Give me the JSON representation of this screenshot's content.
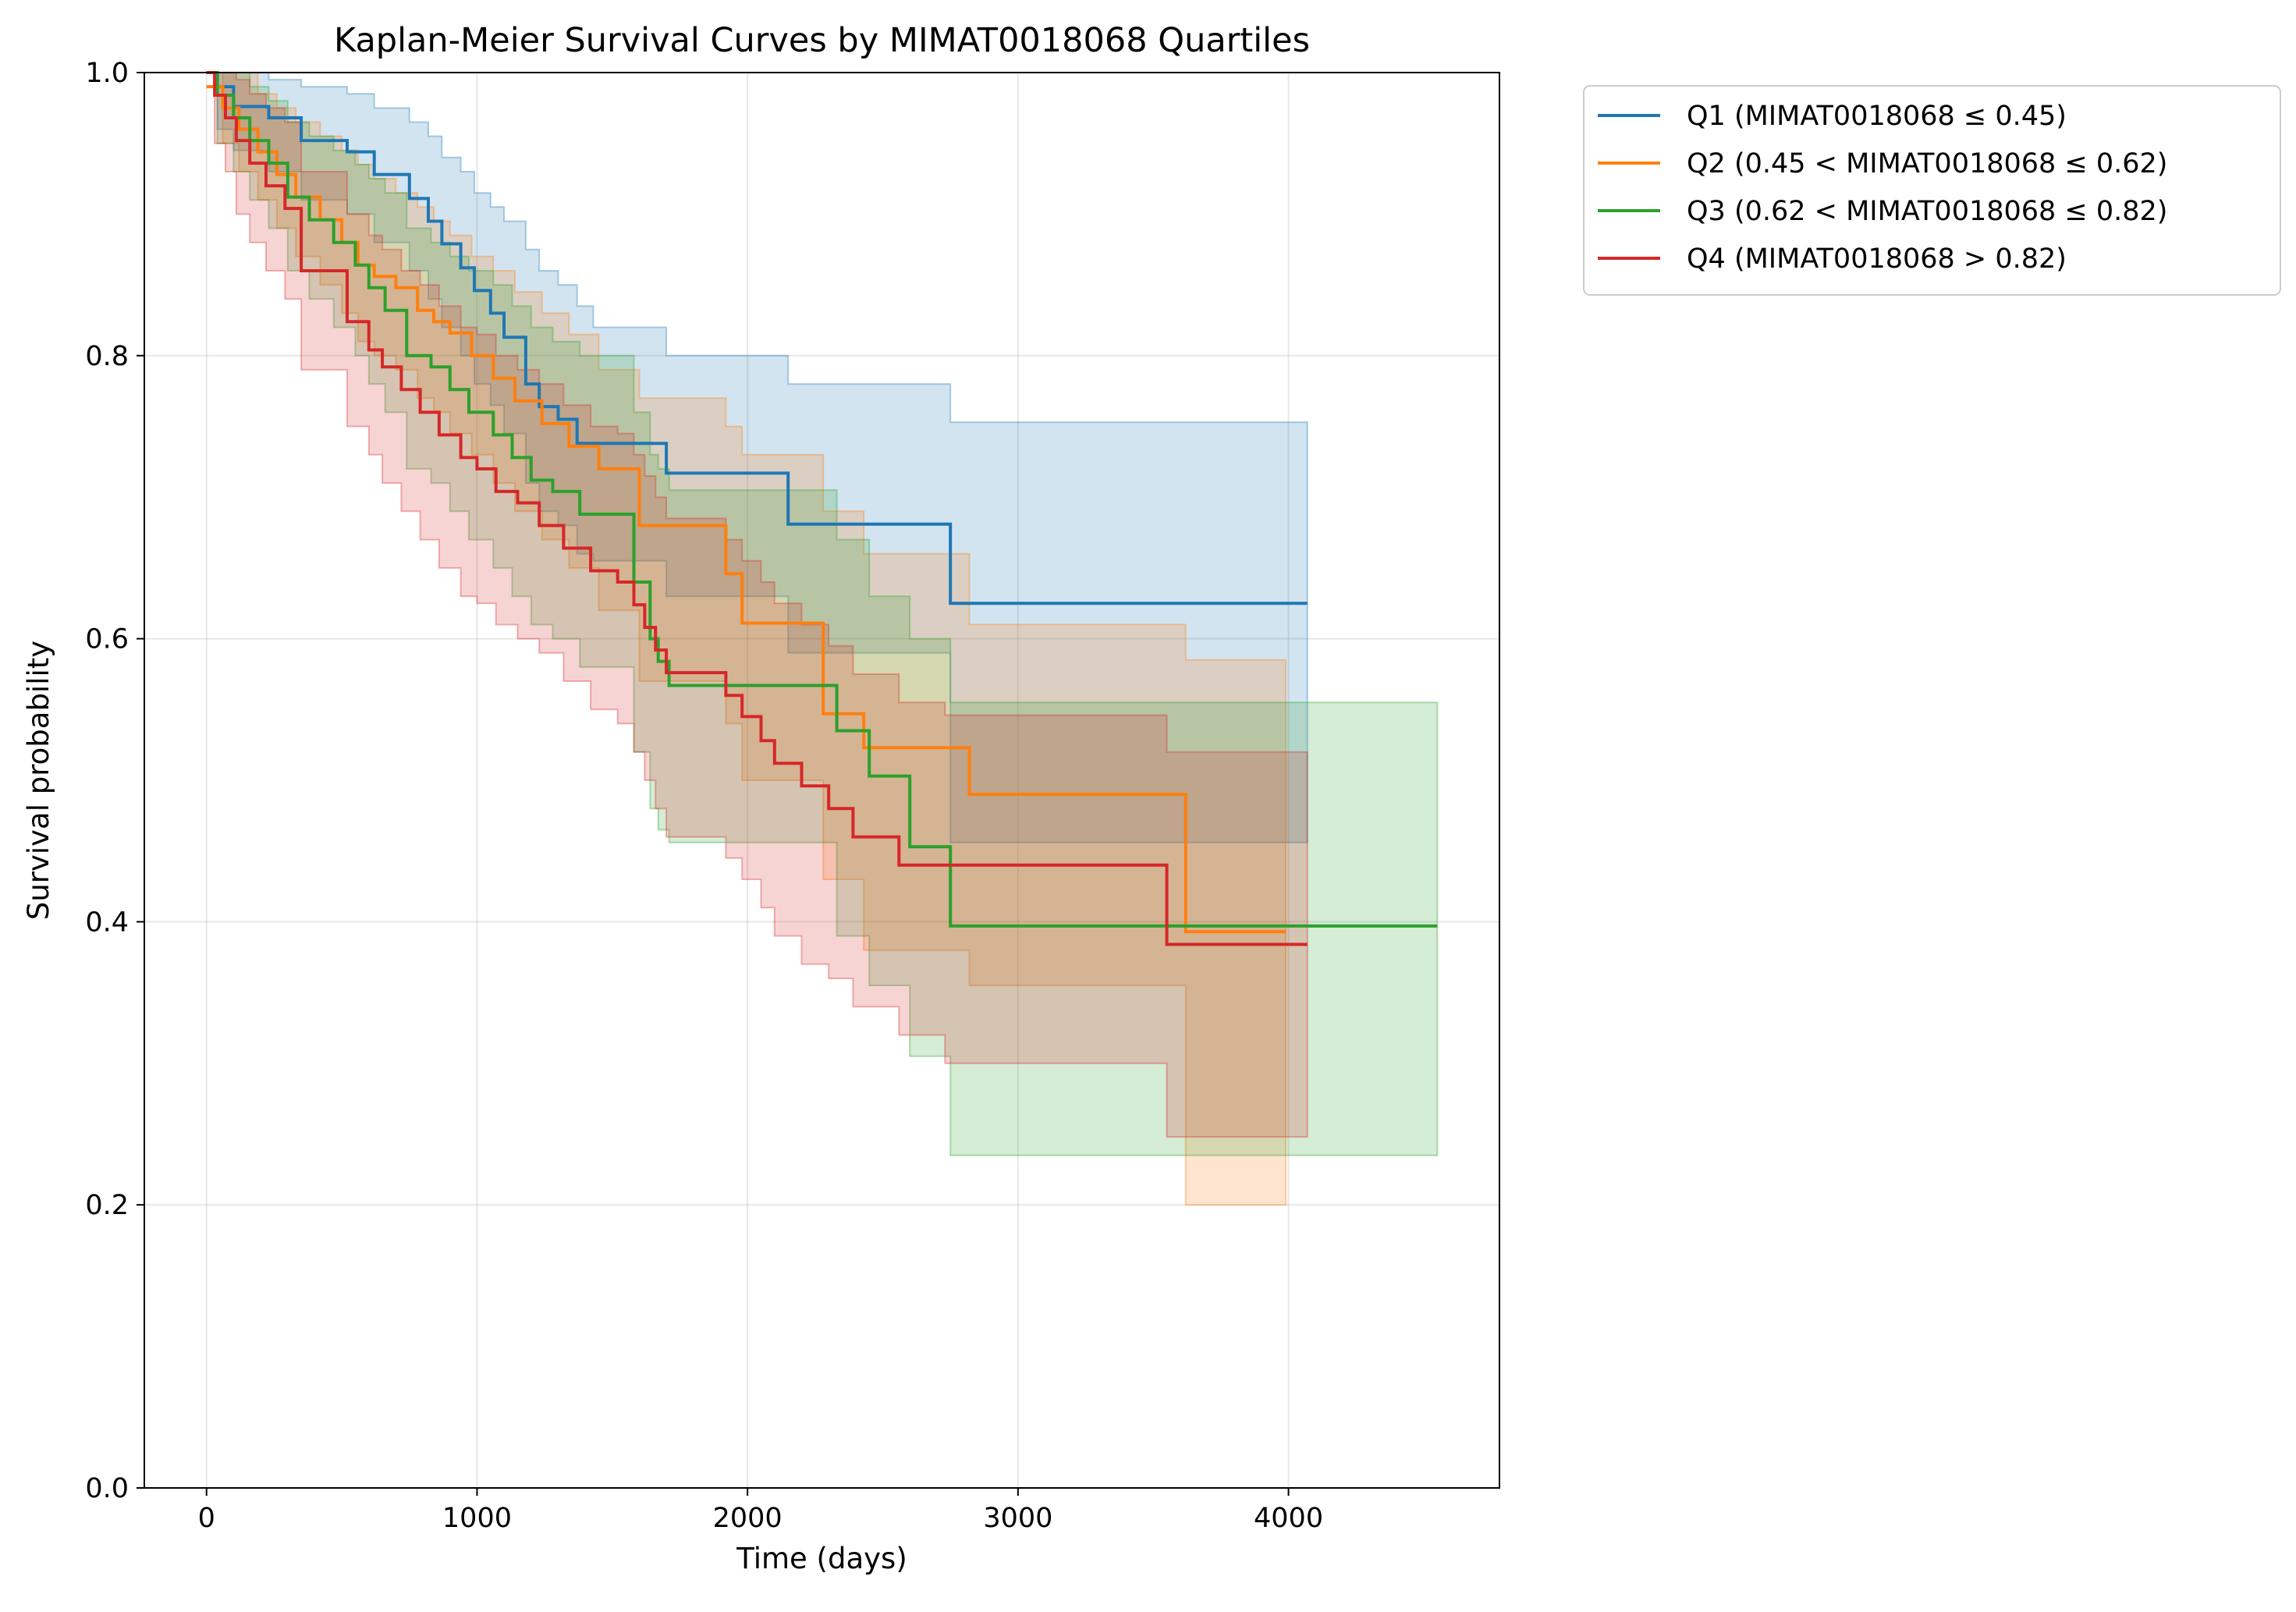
{
  "chart_data": {
    "type": "line",
    "title": "Kaplan-Meier Survival Curves by MIMAT0018068 Quartiles",
    "xlabel": "Time (days)",
    "ylabel": "Survival probability",
    "xlim": [
      -230,
      4780
    ],
    "ylim": [
      0,
      1.0
    ],
    "xticks": [
      0,
      1000,
      2000,
      3000,
      4000
    ],
    "yticks": [
      0.0,
      0.2,
      0.4,
      0.6,
      0.8,
      1.0
    ],
    "xtick_labels": [
      "0",
      "1000",
      "2000",
      "3000",
      "4000"
    ],
    "ytick_labels": [
      "0.0",
      "0.2",
      "0.4",
      "0.6",
      "0.8",
      "1.0"
    ],
    "grid": true,
    "legend_position": "outside-top-right",
    "series": [
      {
        "name": "Q1 (MIMAT0018068 ≤ 0.45)",
        "color": "#1f77b4",
        "x": [
          0,
          40,
          100,
          230,
          350,
          520,
          620,
          750,
          820,
          870,
          940,
          990,
          1050,
          1100,
          1180,
          1230,
          1300,
          1370,
          1430,
          1700,
          2150,
          2750,
          4070
        ],
        "y": [
          1.0,
          0.99,
          0.976,
          0.968,
          0.952,
          0.944,
          0.928,
          0.911,
          0.895,
          0.879,
          0.862,
          0.846,
          0.83,
          0.813,
          0.78,
          0.764,
          0.755,
          0.738,
          0.738,
          0.717,
          0.681,
          0.625,
          0.625
        ],
        "ci_x": [
          0,
          40,
          100,
          230,
          350,
          520,
          620,
          750,
          820,
          870,
          940,
          990,
          1050,
          1100,
          1180,
          1230,
          1300,
          1370,
          1430,
          1700,
          2150,
          2750,
          4070
        ],
        "ci_upper": [
          1.0,
          1.0,
          1.0,
          0.995,
          0.99,
          0.985,
          0.975,
          0.965,
          0.955,
          0.94,
          0.93,
          0.915,
          0.905,
          0.895,
          0.875,
          0.86,
          0.85,
          0.835,
          0.82,
          0.8,
          0.78,
          0.753,
          0.753
        ],
        "ci_lower": [
          1.0,
          0.96,
          0.945,
          0.93,
          0.91,
          0.9,
          0.88,
          0.86,
          0.84,
          0.82,
          0.8,
          0.78,
          0.765,
          0.745,
          0.71,
          0.69,
          0.68,
          0.66,
          0.655,
          0.63,
          0.59,
          0.456,
          0.456
        ]
      },
      {
        "name": "Q2 (0.45 < MIMAT0018068 ≤ 0.62)",
        "color": "#ff7f0e",
        "x": [
          0,
          60,
          120,
          190,
          260,
          330,
          420,
          500,
          560,
          620,
          700,
          780,
          840,
          900,
          980,
          1060,
          1140,
          1240,
          1340,
          1450,
          1600,
          1920,
          1980,
          2280,
          2430,
          2820,
          3620,
          3990
        ],
        "y": [
          0.99,
          0.975,
          0.96,
          0.944,
          0.928,
          0.912,
          0.896,
          0.88,
          0.864,
          0.856,
          0.848,
          0.832,
          0.824,
          0.816,
          0.8,
          0.784,
          0.768,
          0.752,
          0.736,
          0.72,
          0.68,
          0.646,
          0.611,
          0.547,
          0.523,
          0.49,
          0.393,
          0.393
        ],
        "ci_x": [
          0,
          60,
          120,
          190,
          260,
          330,
          420,
          500,
          560,
          620,
          700,
          780,
          840,
          900,
          980,
          1060,
          1140,
          1240,
          1340,
          1450,
          1600,
          1920,
          1980,
          2280,
          2430,
          2820,
          3620,
          3990
        ],
        "ci_upper": [
          1.0,
          1.0,
          1.0,
          0.985,
          0.975,
          0.965,
          0.955,
          0.945,
          0.935,
          0.925,
          0.915,
          0.905,
          0.895,
          0.885,
          0.87,
          0.86,
          0.845,
          0.83,
          0.815,
          0.79,
          0.77,
          0.75,
          0.73,
          0.69,
          0.66,
          0.61,
          0.585,
          0.585
        ],
        "ci_lower": [
          1.0,
          0.95,
          0.93,
          0.91,
          0.89,
          0.87,
          0.85,
          0.83,
          0.81,
          0.8,
          0.79,
          0.77,
          0.76,
          0.745,
          0.73,
          0.71,
          0.69,
          0.67,
          0.65,
          0.62,
          0.57,
          0.54,
          0.5,
          0.43,
          0.38,
          0.355,
          0.2,
          0.2
        ]
      },
      {
        "name": "Q3 (0.62 < MIMAT0018068 ≤ 0.82)",
        "color": "#2ca02c",
        "x": [
          0,
          40,
          100,
          160,
          230,
          300,
          380,
          470,
          550,
          600,
          660,
          740,
          830,
          900,
          970,
          1060,
          1130,
          1200,
          1280,
          1380,
          1580,
          1640,
          1670,
          1710,
          2330,
          2450,
          2600,
          2750,
          4550
        ],
        "y": [
          1.0,
          0.984,
          0.968,
          0.952,
          0.936,
          0.912,
          0.896,
          0.88,
          0.864,
          0.848,
          0.832,
          0.8,
          0.792,
          0.776,
          0.76,
          0.744,
          0.728,
          0.712,
          0.704,
          0.688,
          0.64,
          0.6,
          0.584,
          0.567,
          0.535,
          0.503,
          0.453,
          0.397,
          0.397
        ],
        "ci_x": [
          0,
          40,
          100,
          160,
          230,
          300,
          380,
          470,
          550,
          600,
          660,
          740,
          830,
          900,
          970,
          1060,
          1130,
          1200,
          1280,
          1380,
          1580,
          1640,
          1670,
          1710,
          2330,
          2450,
          2600,
          2750,
          4550
        ],
        "ci_upper": [
          1.0,
          1.0,
          1.0,
          0.99,
          0.98,
          0.965,
          0.955,
          0.945,
          0.935,
          0.925,
          0.915,
          0.89,
          0.88,
          0.87,
          0.86,
          0.85,
          0.835,
          0.82,
          0.81,
          0.8,
          0.76,
          0.73,
          0.72,
          0.705,
          0.67,
          0.63,
          0.6,
          0.555,
          0.555
        ],
        "ci_lower": [
          1.0,
          0.95,
          0.93,
          0.91,
          0.89,
          0.86,
          0.84,
          0.82,
          0.8,
          0.78,
          0.76,
          0.72,
          0.71,
          0.69,
          0.67,
          0.65,
          0.63,
          0.61,
          0.6,
          0.58,
          0.52,
          0.48,
          0.465,
          0.456,
          0.39,
          0.355,
          0.305,
          0.235,
          0.235
        ]
      },
      {
        "name": "Q4 (MIMAT0018068 > 0.82)",
        "color": "#d62728",
        "x": [
          0,
          30,
          70,
          110,
          160,
          220,
          290,
          350,
          440,
          520,
          600,
          650,
          720,
          790,
          860,
          940,
          1000,
          1070,
          1150,
          1230,
          1320,
          1420,
          1520,
          1580,
          1620,
          1660,
          1700,
          1920,
          1980,
          2050,
          2100,
          2200,
          2300,
          2390,
          2560,
          2730,
          3550,
          4070
        ],
        "y": [
          1.0,
          0.984,
          0.968,
          0.952,
          0.936,
          0.92,
          0.904,
          0.86,
          0.86,
          0.824,
          0.804,
          0.792,
          0.776,
          0.76,
          0.744,
          0.728,
          0.72,
          0.704,
          0.696,
          0.68,
          0.664,
          0.648,
          0.64,
          0.624,
          0.608,
          0.592,
          0.576,
          0.56,
          0.545,
          0.528,
          0.512,
          0.496,
          0.48,
          0.46,
          0.44,
          0.44,
          0.384,
          0.384
        ],
        "ci_x": [
          0,
          30,
          70,
          110,
          160,
          220,
          290,
          350,
          440,
          520,
          600,
          650,
          720,
          790,
          860,
          940,
          1000,
          1070,
          1150,
          1230,
          1320,
          1420,
          1520,
          1580,
          1620,
          1660,
          1700,
          1920,
          1980,
          2050,
          2100,
          2200,
          2300,
          2390,
          2560,
          2730,
          3550,
          4070
        ],
        "ci_upper": [
          1.0,
          1.0,
          1.0,
          0.995,
          0.985,
          0.975,
          0.965,
          0.93,
          0.93,
          0.9,
          0.885,
          0.875,
          0.86,
          0.85,
          0.835,
          0.82,
          0.815,
          0.8,
          0.79,
          0.78,
          0.765,
          0.75,
          0.745,
          0.73,
          0.715,
          0.7,
          0.685,
          0.67,
          0.655,
          0.64,
          0.625,
          0.61,
          0.595,
          0.575,
          0.555,
          0.546,
          0.52,
          0.52
        ],
        "ci_lower": [
          1.0,
          0.95,
          0.93,
          0.9,
          0.88,
          0.86,
          0.84,
          0.79,
          0.79,
          0.75,
          0.73,
          0.71,
          0.69,
          0.67,
          0.65,
          0.63,
          0.625,
          0.61,
          0.6,
          0.59,
          0.57,
          0.55,
          0.54,
          0.52,
          0.5,
          0.48,
          0.46,
          0.445,
          0.43,
          0.41,
          0.39,
          0.37,
          0.36,
          0.34,
          0.32,
          0.3,
          0.248,
          0.248
        ]
      }
    ]
  }
}
